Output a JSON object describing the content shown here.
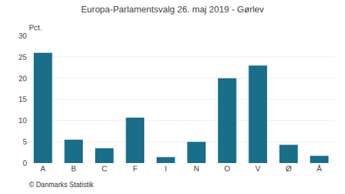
{
  "chart_data": {
    "type": "bar",
    "title": "Europa-Parlamentsvalg 26. maj 2019 - Gørlev",
    "ylabel": "Pct.",
    "annotations": [
      "© Danmarks Statistik"
    ],
    "categories": [
      "A",
      "B",
      "C",
      "F",
      "I",
      "N",
      "O",
      "V",
      "Ø",
      "Å"
    ],
    "values": [
      26.0,
      5.5,
      3.5,
      10.7,
      1.4,
      5.0,
      20.0,
      23.0,
      4.3,
      1.7
    ],
    "color": "#1a6e8a",
    "ylim": [
      0,
      30
    ],
    "yticks": [
      0,
      5,
      10,
      15,
      20,
      25,
      30
    ],
    "grid": true
  }
}
